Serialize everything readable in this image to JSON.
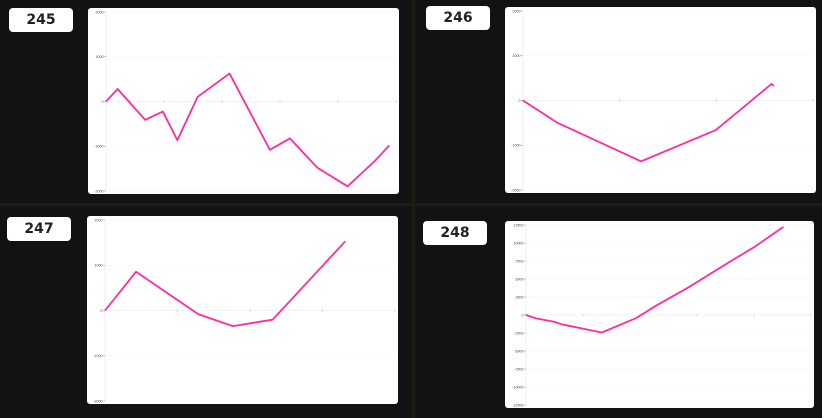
{
  "line_color": "#ff2d9b",
  "chart_data": [
    {
      "type": "line",
      "label": "245",
      "ylim": [
        -2000,
        2000
      ],
      "yticks": [
        2000,
        1000,
        0,
        -1000,
        -2000
      ],
      "xlim": [
        0,
        100
      ],
      "xticks": [
        20,
        40,
        60,
        80,
        100
      ],
      "x": [
        0,
        4,
        13.5,
        19.6,
        24.6,
        31.6,
        42.6,
        56.5,
        63.4,
        72.9,
        83.3,
        92.7,
        97.6
      ],
      "y": [
        0,
        280,
        -410,
        -225,
        -865,
        105,
        625,
        -1080,
        -825,
        -1480,
        -1895,
        -1330,
        -985
      ]
    },
    {
      "type": "line",
      "label": "246",
      "ylim": [
        -2000,
        2000
      ],
      "yticks": [
        2000,
        1000,
        0,
        -1000,
        -2000
      ],
      "xlim": [
        0,
        100
      ],
      "xticks": [
        33.3,
        66.7,
        100
      ],
      "x": [
        0,
        11.8,
        40.7,
        66.5,
        85.7,
        86.4
      ],
      "y": [
        0,
        -495,
        -1360,
        -660,
        370,
        330
      ]
    },
    {
      "type": "line",
      "label": "247",
      "ylim": [
        -2000,
        2000
      ],
      "yticks": [
        2000,
        1000,
        0,
        -1000,
        -2000
      ],
      "xlim": [
        0,
        100
      ],
      "xticks": [
        25,
        50,
        75,
        100
      ],
      "x": [
        0,
        10.7,
        32.2,
        44.1,
        57.8,
        82.8
      ],
      "y": [
        0,
        857,
        -83,
        -346,
        -203,
        1526
      ]
    },
    {
      "type": "line",
      "label": "248",
      "ylim": [
        -12500,
        12500
      ],
      "yticks": [
        12500,
        10000,
        7500,
        5000,
        2500,
        0,
        -2500,
        -5000,
        -7500,
        -10000,
        -12500
      ],
      "xlim": [
        0,
        100
      ],
      "xticks": [
        20,
        40,
        60,
        80,
        100
      ],
      "x": [
        0,
        3.5,
        9.8,
        12.7,
        26.6,
        38.7,
        45.7,
        56.6,
        71.1,
        80.3,
        90.2
      ],
      "y": [
        0,
        -470,
        -935,
        -1310,
        -2430,
        -420,
        1310,
        3740,
        7290,
        9490,
        12200
      ]
    }
  ]
}
